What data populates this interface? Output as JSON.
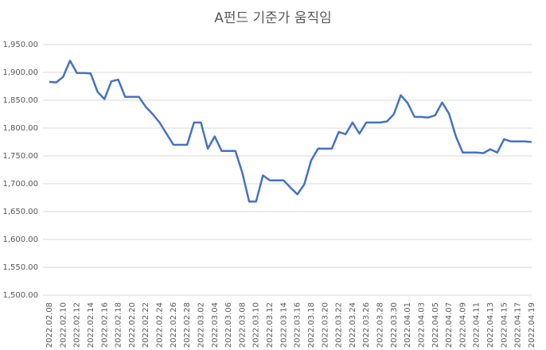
{
  "chart_data": {
    "type": "line",
    "title": "A펀드 기준가 움직임",
    "categories": [
      "2022.02.08",
      null,
      "2022.02.10",
      null,
      "2022.02.12",
      null,
      "2022.02.14",
      null,
      "2022.02.16",
      null,
      "2022.02.18",
      null,
      "2022.02.20",
      null,
      "2022.02.22",
      null,
      "2022.02.24",
      null,
      "2022.02.26",
      null,
      "2022.02.28",
      null,
      "2022.03.02",
      null,
      "2022.03.04",
      null,
      "2022.03.06",
      null,
      "2022.03.08",
      null,
      "2022.03.10",
      null,
      "2022.03.12",
      null,
      "2022.03.14",
      null,
      "2022.03.16",
      null,
      "2022.03.18",
      null,
      "2022.03.20",
      null,
      "2022.03.22",
      null,
      "2022.03.24",
      null,
      "2022.03.26",
      null,
      "2022.03.28",
      null,
      "2022.03.30",
      null,
      "2022.04.01",
      null,
      "2022.04.03",
      null,
      "2022.04.05",
      null,
      "2022.04.07",
      null,
      "2022.04.09",
      null,
      "2022.04.11",
      null,
      "2022.04.13",
      null,
      "2022.04.15",
      null,
      "2022.04.17",
      null,
      "2022.04.19"
    ],
    "series": [
      {
        "color": "#4472c4",
        "values": [
          1883,
          1882,
          1892,
          1921,
          1899,
          1899,
          1898,
          1865,
          1852,
          1884,
          1887,
          1856,
          1856,
          1856,
          1838,
          1825,
          1810,
          1790,
          1770,
          1770,
          1770,
          1810,
          1810,
          1763,
          1785,
          1759,
          1759,
          1759,
          1720,
          1668,
          1668,
          1715,
          1706,
          1706,
          1706,
          1693,
          1681,
          1699,
          1742,
          1763,
          1763,
          1763,
          1793,
          1789,
          1810,
          1790,
          1810,
          1810,
          1810,
          1812,
          1825,
          1859,
          1845,
          1820,
          1820,
          1819,
          1823,
          1846,
          1826,
          1785,
          1756,
          1756,
          1756,
          1755,
          1762,
          1756,
          1780,
          1776,
          1776,
          1776,
          1775
        ]
      }
    ],
    "ylim": [
      1500,
      1950
    ],
    "yticks": [
      {
        "value": 1500,
        "label": "1,500.00"
      },
      {
        "value": 1550,
        "label": "1,550.00"
      },
      {
        "value": 1600,
        "label": "1,600.00"
      },
      {
        "value": 1650,
        "label": "1,650.00"
      },
      {
        "value": 1700,
        "label": "1,700.00"
      },
      {
        "value": 1750,
        "label": "1,750.00"
      },
      {
        "value": 1800,
        "label": "1,800.00"
      },
      {
        "value": 1850,
        "label": "1,850.00"
      },
      {
        "value": 1900,
        "label": "1,900.00"
      },
      {
        "value": 1950,
        "label": "1,950.00"
      }
    ],
    "grid": true
  }
}
